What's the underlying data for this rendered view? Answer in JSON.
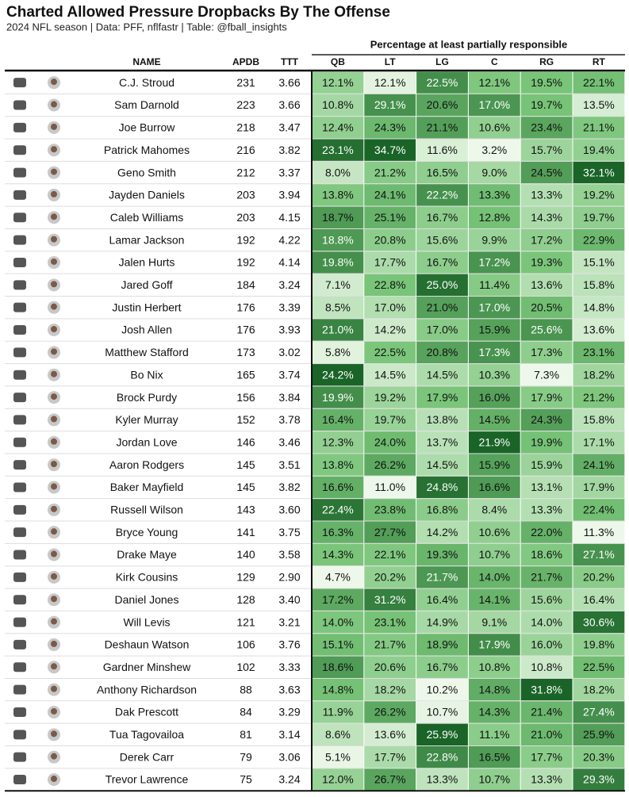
{
  "header": {
    "title": "Charted Allowed Pressure Dropbacks By The Offense",
    "subtitle": "2024 NFL season | Data: PFF, nflfastr | Table: @fball_insights"
  },
  "table": {
    "spanner": "Percentage at least partially responsible",
    "columns": [
      "NAME",
      "APDB",
      "TTT",
      "QB",
      "LT",
      "LG",
      "C",
      "RG",
      "RT"
    ],
    "rows": [
      [
        "C.J. Stroud",
        "231",
        "3.66",
        "12.1%",
        "12.1%",
        "22.5%",
        "12.1%",
        "19.5%",
        "22.1%"
      ],
      [
        "Sam Darnold",
        "223",
        "3.66",
        "10.8%",
        "29.1%",
        "20.6%",
        "17.0%",
        "19.7%",
        "13.5%"
      ],
      [
        "Joe Burrow",
        "218",
        "3.47",
        "12.4%",
        "24.3%",
        "21.1%",
        "10.6%",
        "23.4%",
        "21.1%"
      ],
      [
        "Patrick Mahomes",
        "216",
        "3.82",
        "23.1%",
        "34.7%",
        "11.6%",
        "3.2%",
        "15.7%",
        "19.4%"
      ],
      [
        "Geno Smith",
        "212",
        "3.37",
        "8.0%",
        "21.2%",
        "16.5%",
        "9.0%",
        "24.5%",
        "32.1%"
      ],
      [
        "Jayden Daniels",
        "203",
        "3.94",
        "13.8%",
        "24.1%",
        "22.2%",
        "13.3%",
        "13.3%",
        "19.2%"
      ],
      [
        "Caleb Williams",
        "203",
        "4.15",
        "18.7%",
        "25.1%",
        "16.7%",
        "12.8%",
        "14.3%",
        "19.7%"
      ],
      [
        "Lamar Jackson",
        "192",
        "4.22",
        "18.8%",
        "20.8%",
        "15.6%",
        "9.9%",
        "17.2%",
        "22.9%"
      ],
      [
        "Jalen Hurts",
        "192",
        "4.14",
        "19.8%",
        "17.7%",
        "16.7%",
        "17.2%",
        "19.3%",
        "15.1%"
      ],
      [
        "Jared Goff",
        "184",
        "3.24",
        "7.1%",
        "22.8%",
        "25.0%",
        "11.4%",
        "13.6%",
        "15.8%"
      ],
      [
        "Justin Herbert",
        "176",
        "3.39",
        "8.5%",
        "17.0%",
        "21.0%",
        "17.0%",
        "20.5%",
        "14.8%"
      ],
      [
        "Josh Allen",
        "176",
        "3.93",
        "21.0%",
        "14.2%",
        "17.0%",
        "15.9%",
        "25.6%",
        "13.6%"
      ],
      [
        "Matthew Stafford",
        "173",
        "3.02",
        "5.8%",
        "22.5%",
        "20.8%",
        "17.3%",
        "17.3%",
        "23.1%"
      ],
      [
        "Bo Nix",
        "165",
        "3.74",
        "24.2%",
        "14.5%",
        "14.5%",
        "10.3%",
        "7.3%",
        "18.2%"
      ],
      [
        "Brock Purdy",
        "156",
        "3.84",
        "19.9%",
        "19.2%",
        "17.9%",
        "16.0%",
        "17.9%",
        "21.2%"
      ],
      [
        "Kyler Murray",
        "152",
        "3.78",
        "16.4%",
        "19.7%",
        "13.8%",
        "14.5%",
        "24.3%",
        "15.8%"
      ],
      [
        "Jordan Love",
        "146",
        "3.46",
        "12.3%",
        "24.0%",
        "13.7%",
        "21.9%",
        "19.9%",
        "17.1%"
      ],
      [
        "Aaron Rodgers",
        "145",
        "3.51",
        "13.8%",
        "26.2%",
        "14.5%",
        "15.9%",
        "15.9%",
        "24.1%"
      ],
      [
        "Baker Mayfield",
        "145",
        "3.82",
        "16.6%",
        "11.0%",
        "24.8%",
        "16.6%",
        "13.1%",
        "17.9%"
      ],
      [
        "Russell Wilson",
        "143",
        "3.60",
        "22.4%",
        "23.8%",
        "16.8%",
        "8.4%",
        "13.3%",
        "22.4%"
      ],
      [
        "Bryce Young",
        "141",
        "3.75",
        "16.3%",
        "27.7%",
        "14.2%",
        "10.6%",
        "22.0%",
        "11.3%"
      ],
      [
        "Drake Maye",
        "140",
        "3.58",
        "14.3%",
        "22.1%",
        "19.3%",
        "10.7%",
        "18.6%",
        "27.1%"
      ],
      [
        "Kirk Cousins",
        "129",
        "2.90",
        "4.7%",
        "20.2%",
        "21.7%",
        "14.0%",
        "21.7%",
        "20.2%"
      ],
      [
        "Daniel Jones",
        "128",
        "3.40",
        "17.2%",
        "31.2%",
        "16.4%",
        "14.1%",
        "15.6%",
        "16.4%"
      ],
      [
        "Will Levis",
        "121",
        "3.21",
        "14.0%",
        "23.1%",
        "14.9%",
        "9.1%",
        "14.0%",
        "30.6%"
      ],
      [
        "Deshaun Watson",
        "106",
        "3.76",
        "15.1%",
        "21.7%",
        "18.9%",
        "17.9%",
        "16.0%",
        "19.8%"
      ],
      [
        "Gardner Minshew",
        "102",
        "3.33",
        "18.6%",
        "20.6%",
        "16.7%",
        "10.8%",
        "10.8%",
        "22.5%"
      ],
      [
        "Anthony Richardson",
        "88",
        "3.63",
        "14.8%",
        "18.2%",
        "10.2%",
        "14.8%",
        "31.8%",
        "18.2%"
      ],
      [
        "Dak Prescott",
        "84",
        "3.29",
        "11.9%",
        "26.2%",
        "10.7%",
        "14.3%",
        "21.4%",
        "27.4%"
      ],
      [
        "Tua Tagovailoa",
        "81",
        "3.14",
        "8.6%",
        "13.6%",
        "25.9%",
        "11.1%",
        "21.0%",
        "25.9%"
      ],
      [
        "Derek Carr",
        "79",
        "3.06",
        "5.1%",
        "17.7%",
        "22.8%",
        "16.5%",
        "17.7%",
        "20.3%"
      ],
      [
        "Trevor Lawrence",
        "75",
        "3.24",
        "12.0%",
        "26.7%",
        "13.3%",
        "10.7%",
        "13.3%",
        "29.3%"
      ]
    ]
  }
}
